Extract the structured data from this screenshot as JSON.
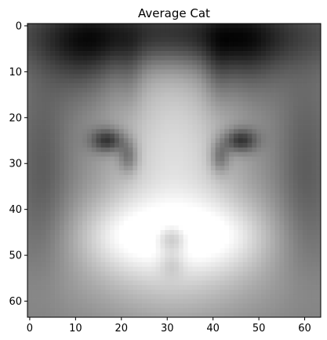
{
  "chart_data": {
    "type": "heatmap",
    "title": "Average Cat",
    "colormap": "gray",
    "grid": false,
    "xlabel": "",
    "ylabel": "",
    "xlim": [
      -0.5,
      63.5
    ],
    "ylim": [
      63.5,
      -0.5
    ],
    "xticks": [
      0,
      10,
      20,
      30,
      40,
      50,
      60
    ],
    "yticks": [
      0,
      10,
      20,
      30,
      40,
      50,
      60
    ],
    "image_size": [
      64,
      64
    ],
    "dark_features": [
      {
        "name": "left eye",
        "x": 17,
        "y": 25
      },
      {
        "name": "right eye",
        "x": 46,
        "y": 25
      },
      {
        "name": "nose",
        "x": 31,
        "y": 46
      },
      {
        "name": "left ear",
        "x": 12,
        "y": 5
      },
      {
        "name": "right ear",
        "x": 46,
        "y": 5
      }
    ]
  }
}
